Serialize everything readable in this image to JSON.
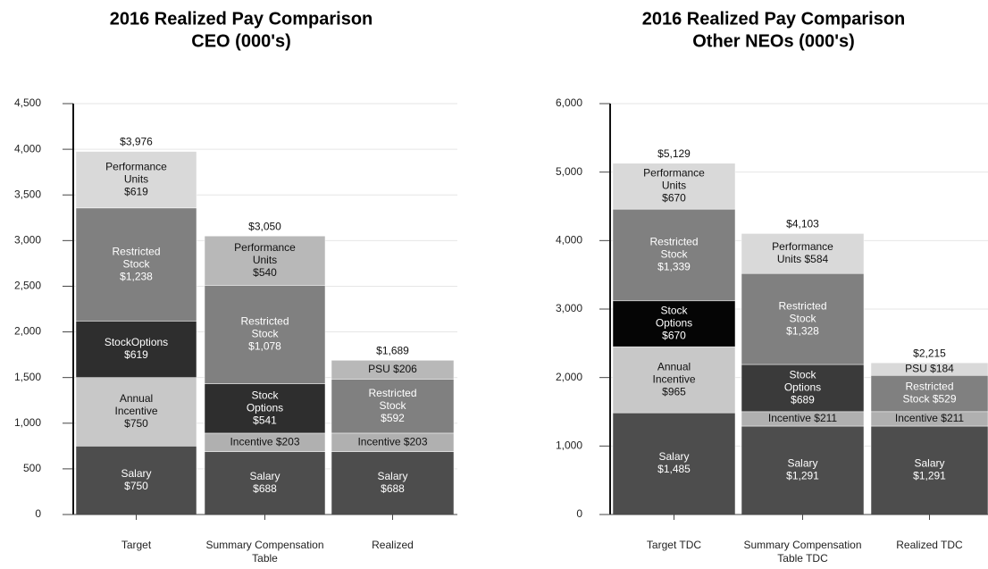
{
  "chart_data": [
    {
      "type": "stacked_bar",
      "title": [
        "2016 Realized Pay Comparison",
        "CEO (000's)"
      ],
      "ylim": [
        0,
        4500
      ],
      "yticks": [
        0,
        500,
        {
          "value": 1000,
          "label": "1,000"
        },
        {
          "value": 1500,
          "label": "1,500"
        },
        {
          "value": 2000,
          "label": "2,000"
        },
        {
          "value": 2500,
          "label": "2,500"
        },
        {
          "value": 3000,
          "label": "3,000"
        },
        {
          "value": 3500,
          "label": "3,500"
        },
        {
          "value": 4000,
          "label": "4,000"
        },
        {
          "value": 4500,
          "label": "4,500"
        }
      ],
      "grid": true,
      "bars": [
        {
          "category": [
            "Target"
          ],
          "total": 3976,
          "total_label": "$3,976",
          "segments": [
            {
              "value": 750,
              "label": [
                "Salary",
                "$750"
              ],
              "color": "#4d4d4d"
            },
            {
              "value": 750,
              "label": [
                "Annual",
                "Incentive",
                "$750"
              ],
              "color": "#c8c8c8"
            },
            {
              "value": 619,
              "label": [
                "StockOptions",
                "$619"
              ],
              "color": "#2e2e2e"
            },
            {
              "value": 1238,
              "label": [
                "Restricted",
                "Stock",
                "$1,238"
              ],
              "color": "#808080"
            },
            {
              "value": 619,
              "label": [
                "Performance",
                "Units",
                "$619"
              ],
              "color": "#d9d9d9"
            }
          ]
        },
        {
          "category": [
            "Summary Compensation",
            "Table"
          ],
          "total": 3050,
          "total_label": "$3,050",
          "segments": [
            {
              "value": 688,
              "label": [
                "Salary",
                "$688"
              ],
              "color": "#4d4d4d"
            },
            {
              "value": 203,
              "label": [
                "Incentive $203"
              ],
              "color": "#b0b0b0"
            },
            {
              "value": 541,
              "label": [
                "Stock",
                "Options",
                "$541"
              ],
              "color": "#2e2e2e"
            },
            {
              "value": 1078,
              "label": [
                "Restricted",
                "Stock",
                "$1,078"
              ],
              "color": "#808080"
            },
            {
              "value": 540,
              "label": [
                "Performance",
                "Units",
                "$540"
              ],
              "color": "#b8b8b8"
            }
          ]
        },
        {
          "category": [
            "Realized"
          ],
          "total": 1689,
          "total_label": "$1,689",
          "segments": [
            {
              "value": 688,
              "label": [
                "Salary",
                "$688"
              ],
              "color": "#4d4d4d"
            },
            {
              "value": 203,
              "label": [
                "Incentive $203"
              ],
              "color": "#b0b0b0"
            },
            {
              "value": 592,
              "label": [
                "Restricted",
                "Stock",
                "$592"
              ],
              "color": "#808080"
            },
            {
              "value": 206,
              "label": [
                "PSU $206"
              ],
              "color": "#b8b8b8"
            }
          ]
        }
      ]
    },
    {
      "type": "stacked_bar",
      "title": [
        "2016 Realized Pay Comparison",
        "Other NEOs (000's)"
      ],
      "ylim": [
        0,
        6000
      ],
      "yticks": [
        0,
        {
          "value": 1000,
          "label": "1,000"
        },
        {
          "value": 2000,
          "label": "2,000"
        },
        {
          "value": 3000,
          "label": "3,000"
        },
        {
          "value": 4000,
          "label": "4,000"
        },
        {
          "value": 5000,
          "label": "5,000"
        },
        {
          "value": 6000,
          "label": "6,000"
        }
      ],
      "grid": true,
      "bars": [
        {
          "category": [
            "Target TDC"
          ],
          "total": 5129,
          "total_label": "$5,129",
          "segments": [
            {
              "value": 1485,
              "label": [
                "Salary",
                "$1,485"
              ],
              "color": "#4d4d4d"
            },
            {
              "value": 965,
              "label": [
                "Annual",
                "Incentive",
                "$965"
              ],
              "color": "#c8c8c8"
            },
            {
              "value": 670,
              "label": [
                "Stock",
                "Options",
                "$670"
              ],
              "color": "#050505"
            },
            {
              "value": 1339,
              "label": [
                "Restricted",
                "Stock",
                "$1,339"
              ],
              "color": "#808080"
            },
            {
              "value": 670,
              "label": [
                "Performance",
                "Units",
                "$670"
              ],
              "color": "#d9d9d9"
            }
          ]
        },
        {
          "category": [
            "Summary Compensation",
            "Table TDC"
          ],
          "total": 4103,
          "total_label": "$4,103",
          "segments": [
            {
              "value": 1291,
              "label": [
                "Salary",
                "$1,291"
              ],
              "color": "#4d4d4d"
            },
            {
              "value": 211,
              "label": [
                "Incentive $211"
              ],
              "color": "#b0b0b0"
            },
            {
              "value": 689,
              "label": [
                "Stock",
                "Options",
                "$689"
              ],
              "color": "#3a3a3a"
            },
            {
              "value": 1328,
              "label": [
                "Restricted",
                "Stock",
                "$1,328"
              ],
              "color": "#808080"
            },
            {
              "value": 584,
              "label": [
                "Performance",
                "Units  $584"
              ],
              "color": "#d9d9d9"
            }
          ]
        },
        {
          "category": [
            "Realized TDC"
          ],
          "total": 2215,
          "total_label": "$2,215",
          "segments": [
            {
              "value": 1291,
              "label": [
                "Salary",
                "$1,291"
              ],
              "color": "#4d4d4d"
            },
            {
              "value": 211,
              "label": [
                "Incentive $211"
              ],
              "color": "#b0b0b0"
            },
            {
              "value": 529,
              "label": [
                "Restricted",
                "Stock $529"
              ],
              "color": "#808080"
            },
            {
              "value": 184,
              "label": [
                "PSU $184"
              ],
              "color": "#d9d9d9"
            }
          ]
        }
      ]
    }
  ]
}
